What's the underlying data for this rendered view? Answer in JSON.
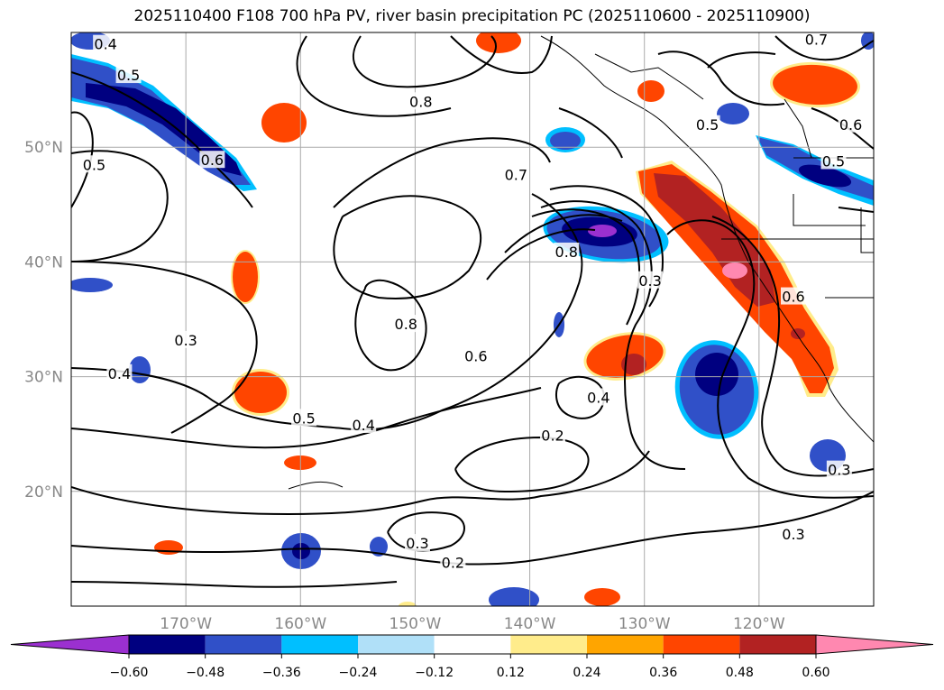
{
  "title": "2025110400 F108 700 hPa PV, river basin precipitation PC (2025110600 - 2025110900)",
  "chart_data": {
    "type": "heatmap",
    "map": {
      "lon_range": [
        -180,
        -110
      ],
      "lat_range": [
        10,
        60
      ],
      "grid": true,
      "x_ticks": [
        -170,
        -160,
        -150,
        -140,
        -130,
        -120
      ],
      "x_tick_labels": [
        "170°W",
        "160°W",
        "150°W",
        "140°W",
        "130°W",
        "120°W"
      ],
      "y_ticks": [
        20,
        30,
        40,
        50
      ],
      "y_tick_labels": [
        "20°N",
        "30°N",
        "40°N",
        "50°N"
      ],
      "tick_color": "#888888"
    },
    "colorbar": {
      "orientation": "horizontal",
      "extend": "both",
      "levels": [
        -0.72,
        -0.6,
        -0.48,
        -0.36,
        -0.24,
        -0.12,
        0.12,
        0.24,
        0.36,
        0.48,
        0.6,
        0.72
      ],
      "colors": [
        "#9b30d0",
        "#000080",
        "#3050c8",
        "#00bfff",
        "#b0e0f8",
        "#ffffff",
        "#ffec8b",
        "#ffa500",
        "#ff4500",
        "#b22222",
        "#ff88b0"
      ],
      "tick_values": [
        -0.6,
        -0.48,
        -0.36,
        -0.24,
        -0.12,
        0.12,
        0.24,
        0.36,
        0.48,
        0.6
      ],
      "tick_labels": [
        "−0.60",
        "−0.48",
        "−0.36",
        "−0.24",
        "−0.12",
        "0.12",
        "0.24",
        "0.36",
        "0.48",
        "0.60"
      ]
    },
    "contour_labels": [
      {
        "text": "0.4",
        "lon": -177.0,
        "lat": 59.0
      },
      {
        "text": "0.5",
        "lon": -175.0,
        "lat": 56.3
      },
      {
        "text": "0.5",
        "lon": -178.0,
        "lat": 48.5
      },
      {
        "text": "0.6",
        "lon": -167.7,
        "lat": 48.9
      },
      {
        "text": "0.8",
        "lon": -149.5,
        "lat": 54.0
      },
      {
        "text": "0.7",
        "lon": -141.2,
        "lat": 47.6
      },
      {
        "text": "0.8",
        "lon": -136.8,
        "lat": 40.9
      },
      {
        "text": "0.8",
        "lon": -150.8,
        "lat": 34.6
      },
      {
        "text": "0.6",
        "lon": -144.7,
        "lat": 31.8
      },
      {
        "text": "0.5",
        "lon": -159.7,
        "lat": 26.4
      },
      {
        "text": "0.4",
        "lon": -154.5,
        "lat": 25.8
      },
      {
        "text": "0.3",
        "lon": -170.0,
        "lat": 33.2
      },
      {
        "text": "0.4",
        "lon": -175.8,
        "lat": 30.3
      },
      {
        "text": "0.2",
        "lon": -138.0,
        "lat": 24.9
      },
      {
        "text": "0.3",
        "lon": -149.8,
        "lat": 15.5
      },
      {
        "text": "0.2",
        "lon": -146.7,
        "lat": 13.8
      },
      {
        "text": "0.3",
        "lon": -129.5,
        "lat": 38.4
      },
      {
        "text": "0.4",
        "lon": -134.0,
        "lat": 28.2
      },
      {
        "text": "0.5",
        "lon": -124.5,
        "lat": 52.0
      },
      {
        "text": "0.5",
        "lon": -113.5,
        "lat": 48.8
      },
      {
        "text": "0.6",
        "lon": -112.0,
        "lat": 52.0
      },
      {
        "text": "0.7",
        "lon": -115.0,
        "lat": 59.4
      },
      {
        "text": "0.6",
        "lon": -117.0,
        "lat": 37.0
      },
      {
        "text": "0.3",
        "lon": -113.0,
        "lat": 21.9
      },
      {
        "text": "0.3",
        "lon": -117.0,
        "lat": 16.3
      }
    ]
  }
}
